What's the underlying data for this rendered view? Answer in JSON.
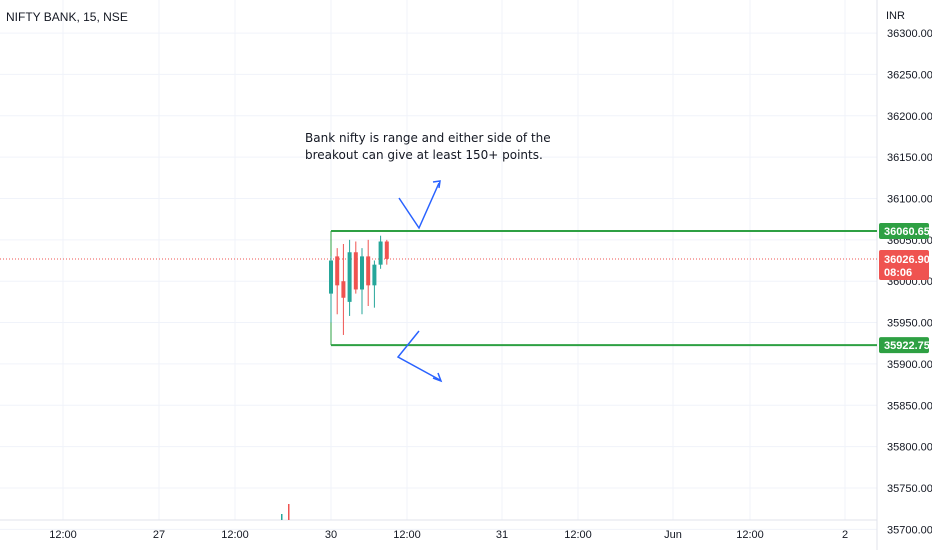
{
  "chart_data": {
    "type": "candlestick",
    "title": "NIFTY BANK, 15, NSE",
    "currency": "INR",
    "ylim": [
      35675,
      36340
    ],
    "y_ticks": [
      "36300.00",
      "36250.00",
      "36200.00",
      "36150.00",
      "36100.00",
      "36050.00",
      "36000.00",
      "35950.00",
      "35900.00",
      "35850.00",
      "35800.00",
      "35750.00",
      "35700.00"
    ],
    "y_tick_values": [
      36300,
      36250,
      36200,
      36150,
      36100,
      36050,
      36000,
      35950,
      35900,
      35850,
      35800,
      35750,
      35700
    ],
    "x_ticks": [
      "12:00",
      "27",
      "12:00",
      "30",
      "12:00",
      "31",
      "12:00",
      "Jun",
      "12:00",
      "2"
    ],
    "candles": [
      {
        "o": 35985,
        "h": 36030,
        "l": 35950,
        "c": 36025
      },
      {
        "o": 36030,
        "h": 36040,
        "l": 35960,
        "c": 35995
      },
      {
        "o": 36000,
        "h": 36045,
        "l": 35935,
        "c": 35980
      },
      {
        "o": 35975,
        "h": 36050,
        "l": 35958,
        "c": 36035
      },
      {
        "o": 36035,
        "h": 36048,
        "l": 35985,
        "c": 35990
      },
      {
        "o": 35990,
        "h": 36040,
        "l": 35960,
        "c": 36030
      },
      {
        "o": 36030,
        "h": 36050,
        "l": 35970,
        "c": 35995
      },
      {
        "o": 35995,
        "h": 36025,
        "l": 35968,
        "c": 36020
      },
      {
        "o": 36020,
        "h": 36055,
        "l": 36015,
        "c": 36048
      },
      {
        "o": 36048,
        "h": 36050,
        "l": 36020,
        "c": 36027
      }
    ],
    "volume_bars": [
      {
        "color": "#26a69a"
      },
      {
        "color": "#ef5350"
      }
    ],
    "levels": {
      "resistance": 36060.65,
      "support": 35922.75,
      "last": 36026.9
    },
    "price_labels": {
      "resistance": "36060.65",
      "support": "35922.75",
      "last": "36026.90",
      "countdown": "08:06"
    },
    "annotation_lines": [
      "Bank nifty is range and either side of the",
      "breakout can give at least 150+ points."
    ],
    "colors": {
      "up": "#26a69a",
      "down": "#ef5350",
      "level": "#2ea043",
      "arrow": "#2962ff",
      "last_price": "#ef5350",
      "grid": "#f0f3fa"
    }
  }
}
